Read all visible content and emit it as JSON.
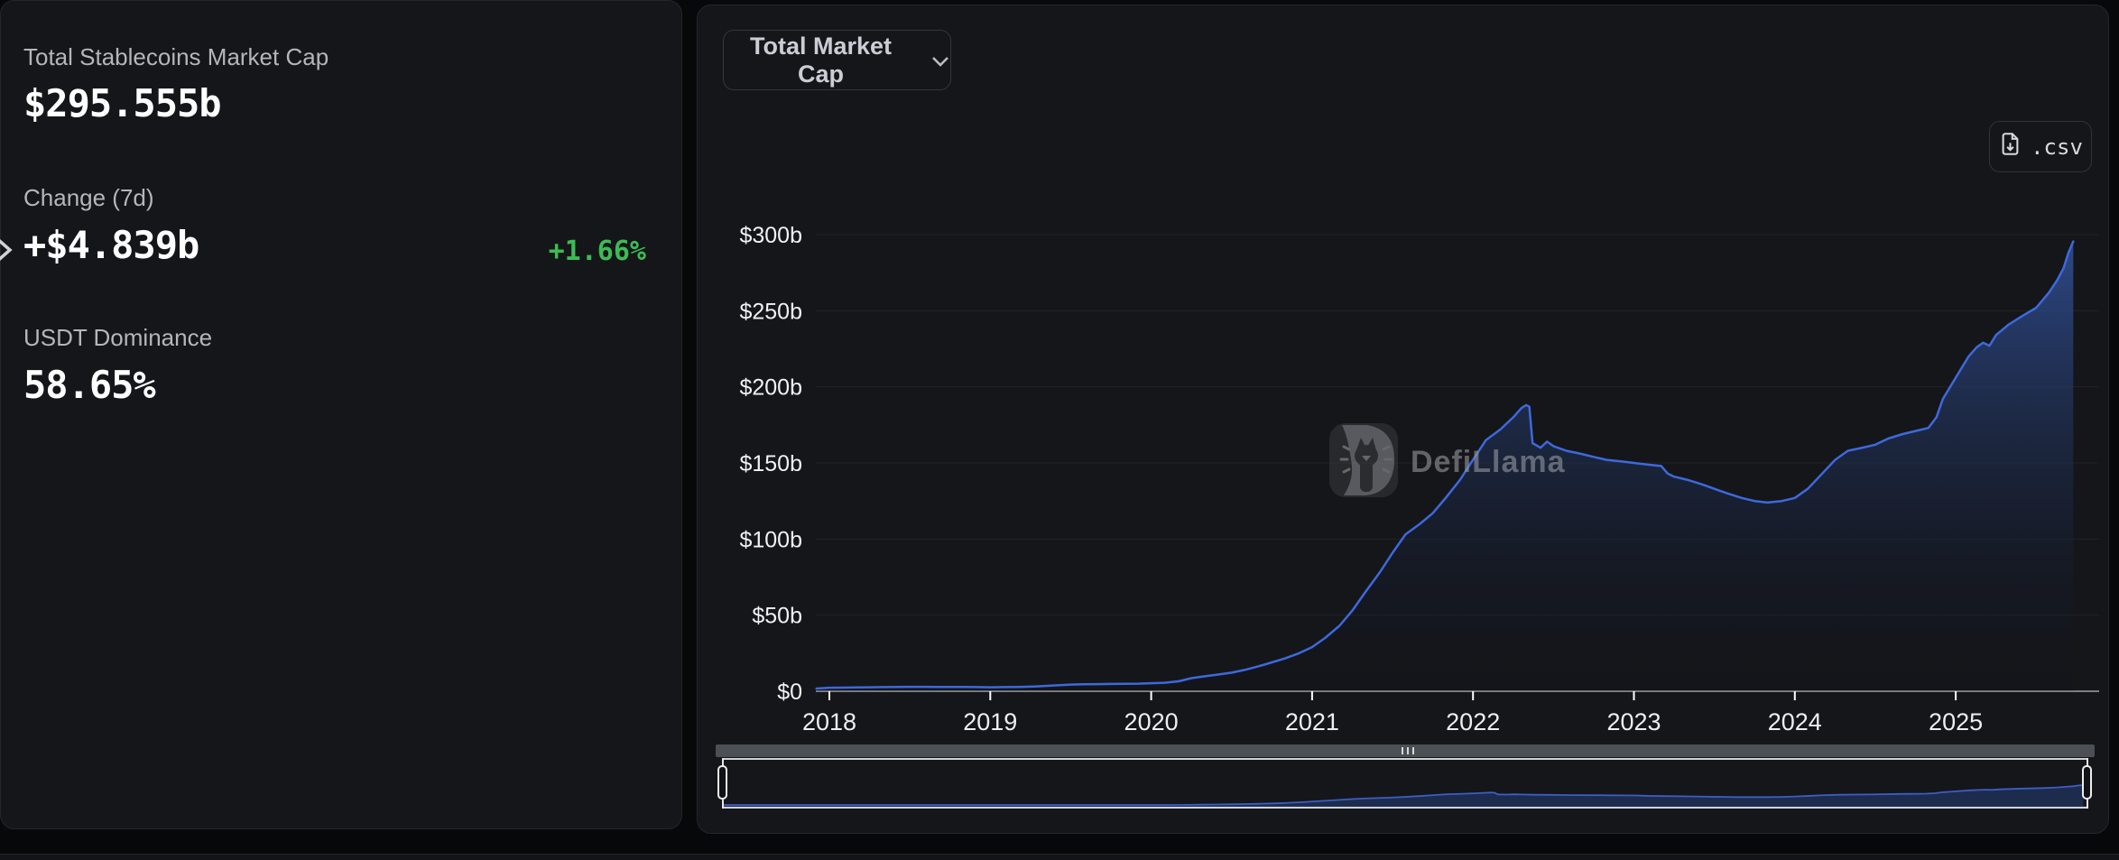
{
  "stats_panel": {
    "stats": [
      {
        "label": "Total Stablecoins Market Cap",
        "value": "$295.555b"
      },
      {
        "label": "Change (7d)",
        "value": "+$4.839b",
        "change_pct": "+1.66%"
      },
      {
        "label": "USDT Dominance",
        "value": "58.65%"
      }
    ]
  },
  "chart_panel": {
    "metric_dropdown": {
      "label": "Total Market Cap"
    },
    "csv_button": {
      "label": ".csv"
    },
    "watermark_text": "DefiLlama"
  },
  "colors": {
    "line_blue": "#3e69dc",
    "area_top": "#33549e",
    "area_bottom": "#0c0f16",
    "positive_green": "#3dbb55",
    "mini_fill": "#1d2c4f",
    "mini_line": "#3c5ec4"
  },
  "chart_data": {
    "type": "area",
    "title": "Total Market Cap",
    "series_name": "Total Stablecoins Market Cap",
    "unit": "billions USD",
    "ylim": [
      0,
      300
    ],
    "y_tick_labels": [
      "$0",
      "$50b",
      "$100b",
      "$150b",
      "$200b",
      "$250b",
      "$300b"
    ],
    "x_tick_labels": [
      "2018",
      "2019",
      "2020",
      "2021",
      "2022",
      "2023",
      "2024",
      "2025"
    ],
    "grid": "horizontal",
    "legend": "none",
    "x_years": [
      2017.92,
      2018.0,
      2018.08,
      2018.17,
      2018.25,
      2018.33,
      2018.42,
      2018.5,
      2018.58,
      2018.67,
      2018.75,
      2018.83,
      2018.92,
      2019.0,
      2019.08,
      2019.17,
      2019.25,
      2019.33,
      2019.42,
      2019.5,
      2019.58,
      2019.67,
      2019.75,
      2019.83,
      2019.92,
      2020.0,
      2020.08,
      2020.17,
      2020.25,
      2020.33,
      2020.42,
      2020.5,
      2020.58,
      2020.67,
      2020.75,
      2020.83,
      2020.92,
      2021.0,
      2021.08,
      2021.17,
      2021.25,
      2021.33,
      2021.42,
      2021.5,
      2021.58,
      2021.67,
      2021.75,
      2021.83,
      2021.92,
      2022.0,
      2022.08,
      2022.17,
      2022.25,
      2022.3,
      2022.33,
      2022.35,
      2022.37,
      2022.42,
      2022.46,
      2022.5,
      2022.58,
      2022.67,
      2022.75,
      2022.83,
      2022.92,
      2023.0,
      2023.08,
      2023.17,
      2023.21,
      2023.25,
      2023.33,
      2023.42,
      2023.5,
      2023.58,
      2023.67,
      2023.75,
      2023.83,
      2023.92,
      2024.0,
      2024.08,
      2024.17,
      2024.25,
      2024.33,
      2024.42,
      2024.5,
      2024.58,
      2024.67,
      2024.75,
      2024.83,
      2024.88,
      2024.92,
      2025.0,
      2025.08,
      2025.13,
      2025.17,
      2025.21,
      2025.25,
      2025.33,
      2025.42,
      2025.5,
      2025.58,
      2025.63,
      2025.67,
      2025.7,
      2025.73
    ],
    "values_billions": [
      1.8,
      2.3,
      2.4,
      2.5,
      2.6,
      2.7,
      2.8,
      2.9,
      2.9,
      2.8,
      2.8,
      2.8,
      2.7,
      2.6,
      2.7,
      2.8,
      3.0,
      3.4,
      3.9,
      4.4,
      4.6,
      4.7,
      4.8,
      4.9,
      5.0,
      5.3,
      5.6,
      6.5,
      8.6,
      9.8,
      11.0,
      12.2,
      14.0,
      16.5,
      19.0,
      21.5,
      25.0,
      29,
      35,
      43,
      53,
      65,
      78,
      91,
      103,
      110,
      117,
      127,
      139,
      152,
      165,
      172,
      180,
      186,
      188,
      187,
      163,
      160,
      164,
      161,
      158,
      156,
      154,
      152,
      151,
      150,
      149,
      148,
      143,
      141,
      139,
      136,
      133,
      130,
      127,
      125,
      124,
      125,
      127,
      133,
      143,
      152,
      158,
      160,
      162,
      166,
      169,
      171,
      173,
      180,
      192,
      206,
      220,
      226,
      229,
      227,
      234,
      241,
      247,
      252,
      262,
      270,
      278,
      288,
      295.5
    ],
    "brush": {
      "selected_range": "full",
      "handle_count": 2
    }
  }
}
